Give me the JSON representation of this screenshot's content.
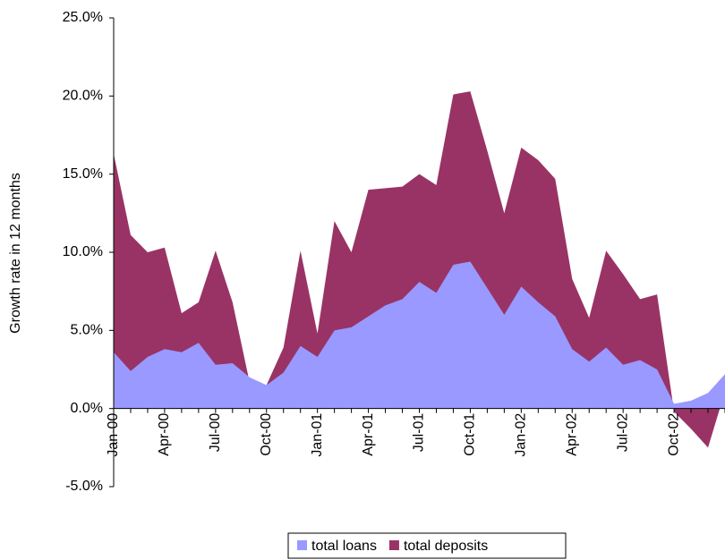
{
  "chart_data": {
    "type": "area",
    "y_label": "Growth rate in 12 months",
    "categories": [
      "Jan-00",
      null,
      null,
      "Apr-00",
      null,
      null,
      "Jul-00",
      null,
      null,
      "Oct-00",
      null,
      null,
      "Jan-01",
      null,
      null,
      "Apr-01",
      null,
      null,
      "Jul-01",
      null,
      null,
      "Oct-01",
      null,
      null,
      "Jan-02",
      null,
      null,
      "Apr-02",
      null,
      null,
      "Jul-02",
      null,
      null,
      "Oct-02",
      null,
      null,
      null
    ],
    "series": [
      {
        "name": "total deposits",
        "color": "#993366",
        "values": [
          16.3,
          11.1,
          10.0,
          10.3,
          6.1,
          6.8,
          10.1,
          6.8,
          1.7,
          1.5,
          3.9,
          10.1,
          4.8,
          12.0,
          10.0,
          14.0,
          14.1,
          14.2,
          15.0,
          14.3,
          20.1,
          20.3,
          16.5,
          12.5,
          16.7,
          15.9,
          14.7,
          8.3,
          5.8,
          10.1,
          8.6,
          7.0,
          7.3,
          -0.2,
          -1.3,
          -2.5,
          1.1
        ]
      },
      {
        "name": "total loans",
        "color": "#9999ff",
        "values": [
          3.6,
          2.4,
          3.3,
          3.8,
          3.6,
          4.2,
          2.8,
          2.9,
          2.0,
          1.5,
          2.3,
          4.0,
          3.3,
          5.0,
          5.2,
          5.9,
          6.6,
          7.0,
          8.1,
          7.4,
          9.2,
          9.4,
          7.7,
          6.0,
          7.8,
          6.8,
          5.9,
          3.8,
          3.0,
          3.9,
          2.8,
          3.1,
          2.5,
          0.3,
          0.5,
          1.0,
          2.2
        ]
      }
    ],
    "legend_order": [
      "total loans",
      "total deposits"
    ],
    "ylim": [
      -5,
      25
    ],
    "yticks": [
      {
        "value": -5,
        "label": "-5.0%"
      },
      {
        "value": 0,
        "label": "0.0%"
      },
      {
        "value": 5,
        "label": "5.0%"
      },
      {
        "value": 10,
        "label": "10.0%"
      },
      {
        "value": 15,
        "label": "15.0%"
      },
      {
        "value": 20,
        "label": "20.0%"
      },
      {
        "value": 25,
        "label": "25.0%"
      }
    ],
    "legend": "bottom"
  }
}
